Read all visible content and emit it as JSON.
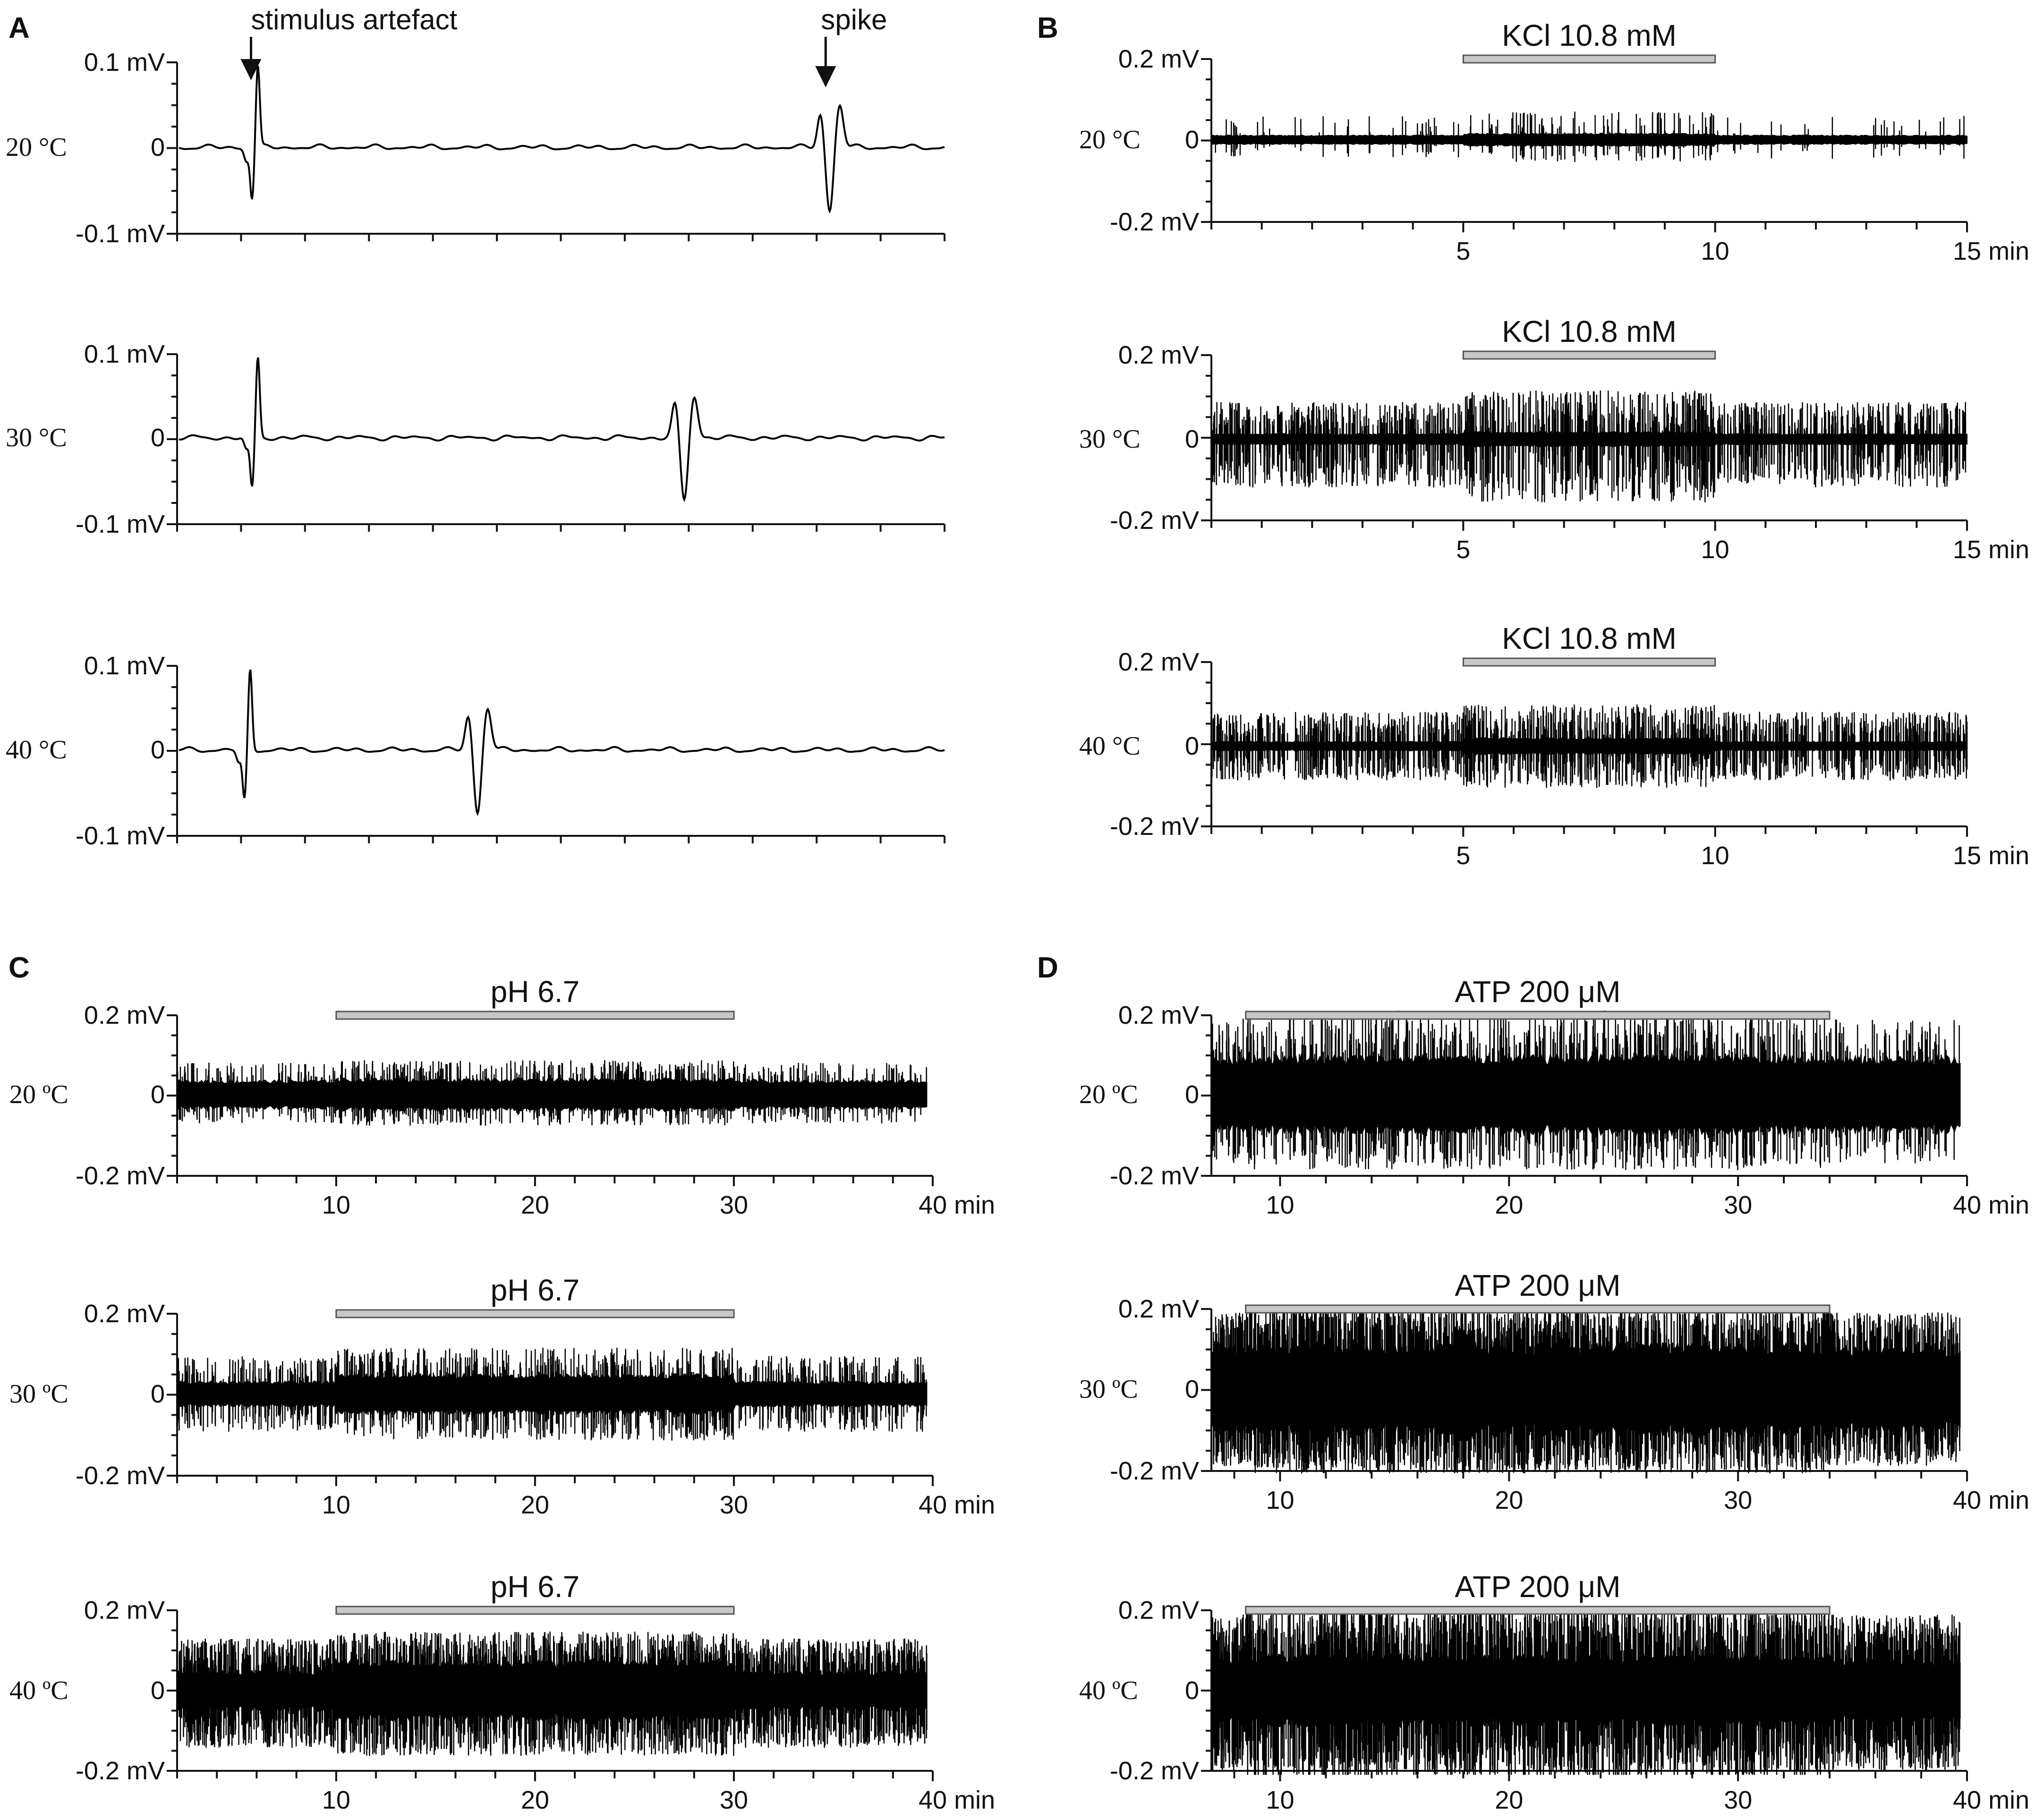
{
  "chart_data": [
    {
      "panel": "A",
      "type": "line",
      "annotations": [
        "stimulus artefact",
        "spike"
      ],
      "ylim": [
        -0.1,
        0.1
      ],
      "y_tick_labels": [
        "0.1 mV",
        "0",
        "-0.1 mV"
      ],
      "rows": [
        {
          "temperature": "20 °C",
          "artefact_x": 0.1,
          "spike_x": 0.85
        },
        {
          "temperature": "30 °C",
          "artefact_x": 0.1,
          "spike_x": 0.66
        },
        {
          "temperature": "40 °C",
          "artefact_x": 0.09,
          "spike_x": 0.39
        }
      ]
    },
    {
      "panel": "B",
      "type": "line",
      "bar_label": "KCl 10.8 mM",
      "bar_range": [
        5,
        10
      ],
      "xlim": [
        0,
        15
      ],
      "x_ticks": [
        5,
        10,
        15
      ],
      "x_tick_labels": [
        "5",
        "10",
        "15 min"
      ],
      "ylim": [
        -0.2,
        0.2
      ],
      "y_tick_labels": [
        "0.2 mV",
        "0",
        "-0.2 mV"
      ],
      "rows": [
        {
          "temperature": "20 °C"
        },
        {
          "temperature": "30 °C"
        },
        {
          "temperature": "40 °C"
        }
      ]
    },
    {
      "panel": "C",
      "type": "line",
      "bar_label": "pH 6.7",
      "bar_range": [
        10,
        30
      ],
      "xlim": [
        2,
        40
      ],
      "x_ticks": [
        10,
        20,
        30,
        40
      ],
      "x_tick_labels": [
        "10",
        "20",
        "30",
        "40 min"
      ],
      "ylim": [
        -0.2,
        0.2
      ],
      "y_tick_labels": [
        "0.2 mV",
        "0",
        "-0.2 mV"
      ],
      "rows": [
        {
          "temperature": "20 ºC"
        },
        {
          "temperature": "30 ºC"
        },
        {
          "temperature": "40 ºC"
        }
      ]
    },
    {
      "panel": "D",
      "type": "line",
      "bar_label": "ATP 200 μM",
      "bar_range": [
        8.5,
        34
      ],
      "xlim": [
        7,
        40
      ],
      "x_ticks": [
        10,
        20,
        30,
        40
      ],
      "x_tick_labels": [
        "10",
        "20",
        "30",
        "40 min"
      ],
      "ylim": [
        -0.2,
        0.2
      ],
      "y_tick_labels": [
        "0.2 mV",
        "0",
        "-0.2 mV"
      ],
      "rows": [
        {
          "temperature": "20 ºC"
        },
        {
          "temperature": "30 ºC"
        },
        {
          "temperature": "40 ºC"
        }
      ]
    }
  ]
}
